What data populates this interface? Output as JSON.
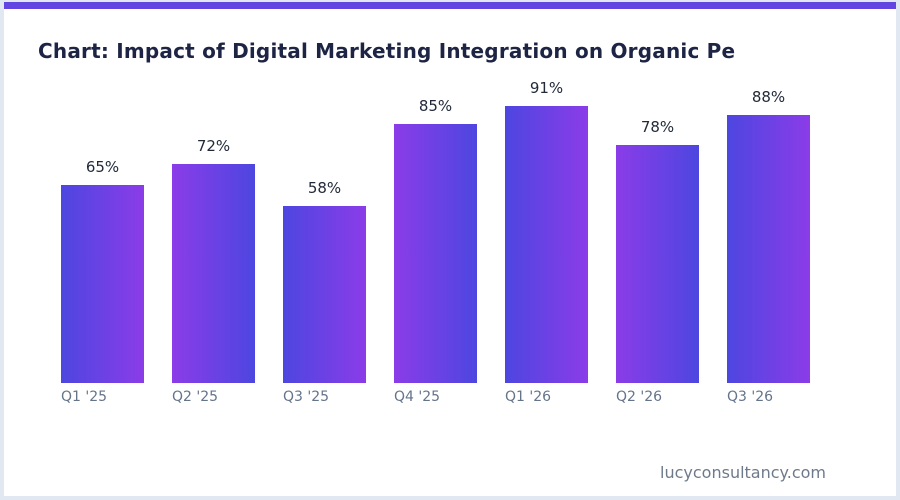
{
  "header": {
    "title": "Chart: Impact of Digital Marketing Integration on Organic Pe"
  },
  "footer": {
    "site": "lucyconsultancy.com"
  },
  "colors": {
    "accent_bar": "#6345e1",
    "bar_gradient_indigo": "#4d46e0",
    "bar_gradient_violet": "#8b3ce8",
    "title_text": "#1e2443",
    "value_label_text": "#222a3a",
    "tick_text": "#64748b",
    "footer_text": "#6e7a8c",
    "page_background": "#e2e8f1",
    "card_background": "#ffffff"
  },
  "chart_data": {
    "type": "bar",
    "title": "Chart: Impact of Digital Marketing Integration on Organic Pe",
    "categories": [
      "Q1 '25",
      "Q2 '25",
      "Q3 '25",
      "Q4 '25",
      "Q1 '26",
      "Q2 '26",
      "Q3 '26"
    ],
    "values": [
      65,
      72,
      58,
      85,
      91,
      78,
      88
    ],
    "value_labels": [
      "65%",
      "72%",
      "58%",
      "85%",
      "91%",
      "78%",
      "88%"
    ],
    "xlabel": "",
    "ylabel": "",
    "ylim": [
      0,
      100
    ],
    "grid": false,
    "legend": false,
    "bar_gradient_note": "horizontal gradient, direction alternates per bar: odd bars indigo-to-violet, even bars violet-to-indigo"
  }
}
